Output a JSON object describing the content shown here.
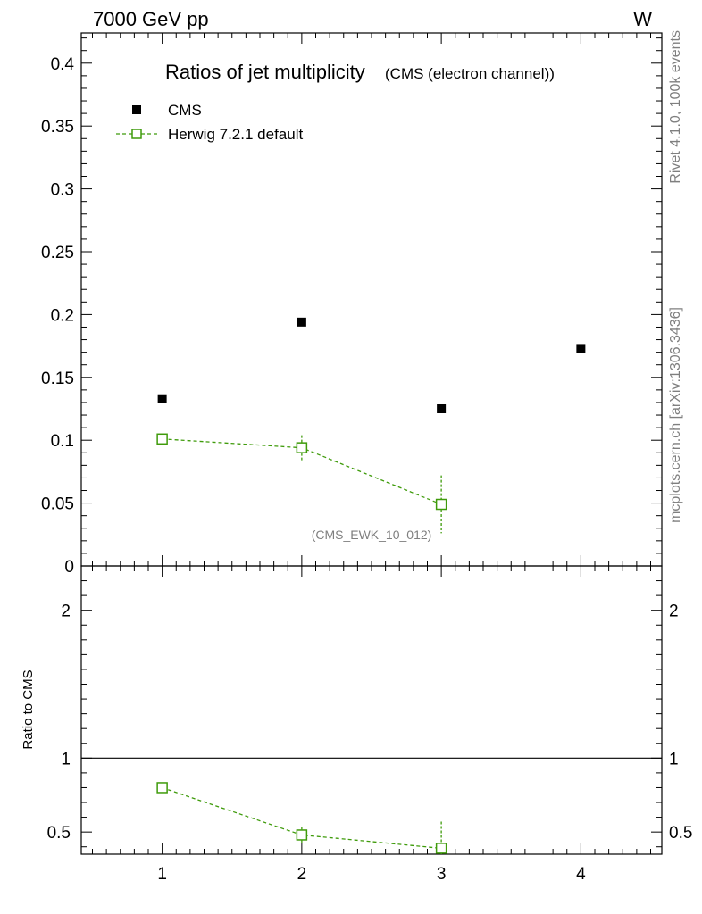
{
  "chart_data": {
    "type": "scatter",
    "header_left": "7000 GeV pp",
    "header_right": "W",
    "title": "Ratios of jet multiplicity",
    "subtitle": "(CMS (electron channel))",
    "side_label_top": "Rivet 4.1.0,  100k events",
    "side_label_bottom": "mcplots.cern.ch [arXiv:1306.3436]",
    "analysis_tag": "(CMS_EWK_10_012)",
    "xlim": [
      0.42,
      4.58
    ],
    "main_ylim": [
      0,
      0.424
    ],
    "main_yticks": [
      0,
      0.05,
      0.1,
      0.15,
      0.2,
      0.25,
      0.3,
      0.35,
      0.4
    ],
    "main_ytick_labels": [
      "0",
      "0.05",
      "0.1",
      "0.15",
      "0.2",
      "0.25",
      "0.3",
      "0.35",
      "0.4"
    ],
    "xticks": [
      1,
      2,
      3,
      4
    ],
    "xtick_labels": [
      "1",
      "2",
      "3",
      "4"
    ],
    "ratio_ylabel": "Ratio to CMS",
    "ratio_ylim": [
      0.35,
      2.3
    ],
    "ratio_yticks": [
      0.5,
      1,
      2
    ],
    "ratio_ytick_labels": [
      "0.5",
      "1",
      "2"
    ],
    "legend": [
      {
        "name": "CMS",
        "marker": "filled-square",
        "color": "#000000"
      },
      {
        "name": "Herwig 7.2.1 default",
        "marker": "open-square-dashed",
        "color": "#3f9b0b"
      }
    ],
    "series": [
      {
        "name": "CMS",
        "x": [
          1,
          2,
          3,
          4
        ],
        "y": [
          0.133,
          0.194,
          0.125,
          0.173
        ],
        "yerr": [
          0,
          0,
          0,
          0
        ]
      },
      {
        "name": "Herwig 7.2.1 default",
        "x": [
          1,
          2,
          3
        ],
        "y": [
          0.101,
          0.094,
          0.049
        ],
        "yerr": [
          0.0015,
          0.01,
          0.023
        ]
      }
    ],
    "ratio_series": [
      {
        "name": "Herwig 7.2.1 default",
        "x": [
          1,
          2,
          3
        ],
        "y": [
          0.8,
          0.48,
          0.39
        ],
        "yerr": [
          0.012,
          0.055,
          0.18
        ]
      }
    ],
    "colors": {
      "data": "#000000",
      "mc": "#3f9b0b",
      "side_text": "#7f7f7f"
    }
  }
}
